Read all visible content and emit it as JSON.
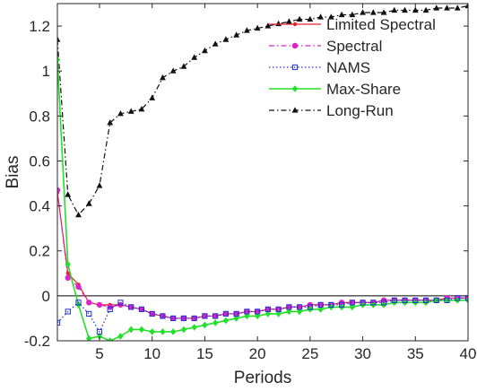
{
  "chart_data": {
    "type": "line",
    "title": "",
    "xlabel": "Periods",
    "ylabel": "Bias",
    "xlim": [
      1,
      40
    ],
    "ylim": [
      -0.2,
      1.3
    ],
    "xticks": [
      5,
      10,
      15,
      20,
      25,
      30,
      35,
      40
    ],
    "yticks": [
      -0.2,
      0,
      0.2,
      0.4,
      0.6,
      0.8,
      1,
      1.2
    ],
    "ytick_labels": [
      "-0.2",
      "0",
      "0.2",
      "0.4",
      "0.6",
      "0.8",
      "1",
      "1.2"
    ],
    "zero_line": true,
    "grid": false,
    "legend_position": "top-right",
    "x": [
      1,
      2,
      3,
      4,
      5,
      6,
      7,
      8,
      9,
      10,
      11,
      12,
      13,
      14,
      15,
      16,
      17,
      18,
      19,
      20,
      21,
      22,
      23,
      24,
      25,
      26,
      27,
      28,
      29,
      30,
      31,
      32,
      33,
      34,
      35,
      36,
      37,
      38,
      39,
      40
    ],
    "series": [
      {
        "name": "Limited Spectral",
        "color": "#e8202a",
        "dash": "solid",
        "marker": "dot",
        "values": [
          0.46,
          0.1,
          0.05,
          -0.03,
          -0.04,
          -0.04,
          -0.04,
          -0.05,
          -0.06,
          -0.08,
          -0.09,
          -0.1,
          -0.1,
          -0.1,
          -0.09,
          -0.09,
          -0.08,
          -0.08,
          -0.07,
          -0.07,
          -0.06,
          -0.06,
          -0.05,
          -0.05,
          -0.04,
          -0.04,
          -0.04,
          -0.03,
          -0.03,
          -0.03,
          -0.03,
          -0.02,
          -0.02,
          -0.02,
          -0.02,
          -0.02,
          -0.02,
          -0.01,
          -0.01,
          -0.01
        ]
      },
      {
        "name": "Spectral",
        "color": "#e020c8",
        "dash": "dashdot",
        "marker": "circle",
        "values": [
          0.47,
          0.08,
          0.04,
          -0.03,
          -0.04,
          -0.05,
          -0.04,
          -0.05,
          -0.06,
          -0.08,
          -0.09,
          -0.1,
          -0.1,
          -0.1,
          -0.09,
          -0.09,
          -0.08,
          -0.08,
          -0.07,
          -0.07,
          -0.06,
          -0.06,
          -0.05,
          -0.05,
          -0.04,
          -0.04,
          -0.04,
          -0.03,
          -0.03,
          -0.03,
          -0.03,
          -0.02,
          -0.02,
          -0.02,
          -0.02,
          -0.02,
          -0.02,
          -0.01,
          -0.01,
          -0.01
        ]
      },
      {
        "name": "NAMS",
        "color": "#1f2fd0",
        "dash": "dotted",
        "marker": "square",
        "values": [
          -0.12,
          -0.07,
          -0.03,
          -0.08,
          -0.16,
          -0.06,
          -0.03,
          -0.05,
          -0.06,
          -0.08,
          -0.09,
          -0.1,
          -0.1,
          -0.1,
          -0.09,
          -0.09,
          -0.08,
          -0.08,
          -0.07,
          -0.07,
          -0.06,
          -0.06,
          -0.05,
          -0.05,
          -0.05,
          -0.04,
          -0.04,
          -0.04,
          -0.03,
          -0.03,
          -0.03,
          -0.03,
          -0.02,
          -0.02,
          -0.02,
          -0.02,
          -0.02,
          -0.02,
          -0.01,
          -0.01
        ]
      },
      {
        "name": "Max-Share",
        "color": "#22e02a",
        "dash": "solid",
        "marker": "diamond",
        "values": [
          1.05,
          0.14,
          -0.04,
          -0.19,
          -0.18,
          -0.2,
          -0.18,
          -0.15,
          -0.15,
          -0.16,
          -0.16,
          -0.16,
          -0.15,
          -0.14,
          -0.13,
          -0.12,
          -0.11,
          -0.1,
          -0.09,
          -0.09,
          -0.08,
          -0.08,
          -0.07,
          -0.07,
          -0.06,
          -0.06,
          -0.05,
          -0.05,
          -0.05,
          -0.04,
          -0.04,
          -0.04,
          -0.03,
          -0.03,
          -0.03,
          -0.03,
          -0.02,
          -0.02,
          -0.02,
          -0.02
        ]
      },
      {
        "name": "Long-Run",
        "color": "#111111",
        "dash": "dashdot",
        "marker": "triangle",
        "values": [
          1.14,
          0.45,
          0.36,
          0.41,
          0.49,
          0.77,
          0.81,
          0.82,
          0.83,
          0.88,
          0.97,
          1.0,
          1.02,
          1.06,
          1.09,
          1.12,
          1.14,
          1.16,
          1.18,
          1.19,
          1.2,
          1.21,
          1.22,
          1.23,
          1.23,
          1.24,
          1.24,
          1.25,
          1.25,
          1.26,
          1.26,
          1.26,
          1.27,
          1.27,
          1.27,
          1.27,
          1.28,
          1.28,
          1.28,
          1.29
        ]
      }
    ]
  }
}
